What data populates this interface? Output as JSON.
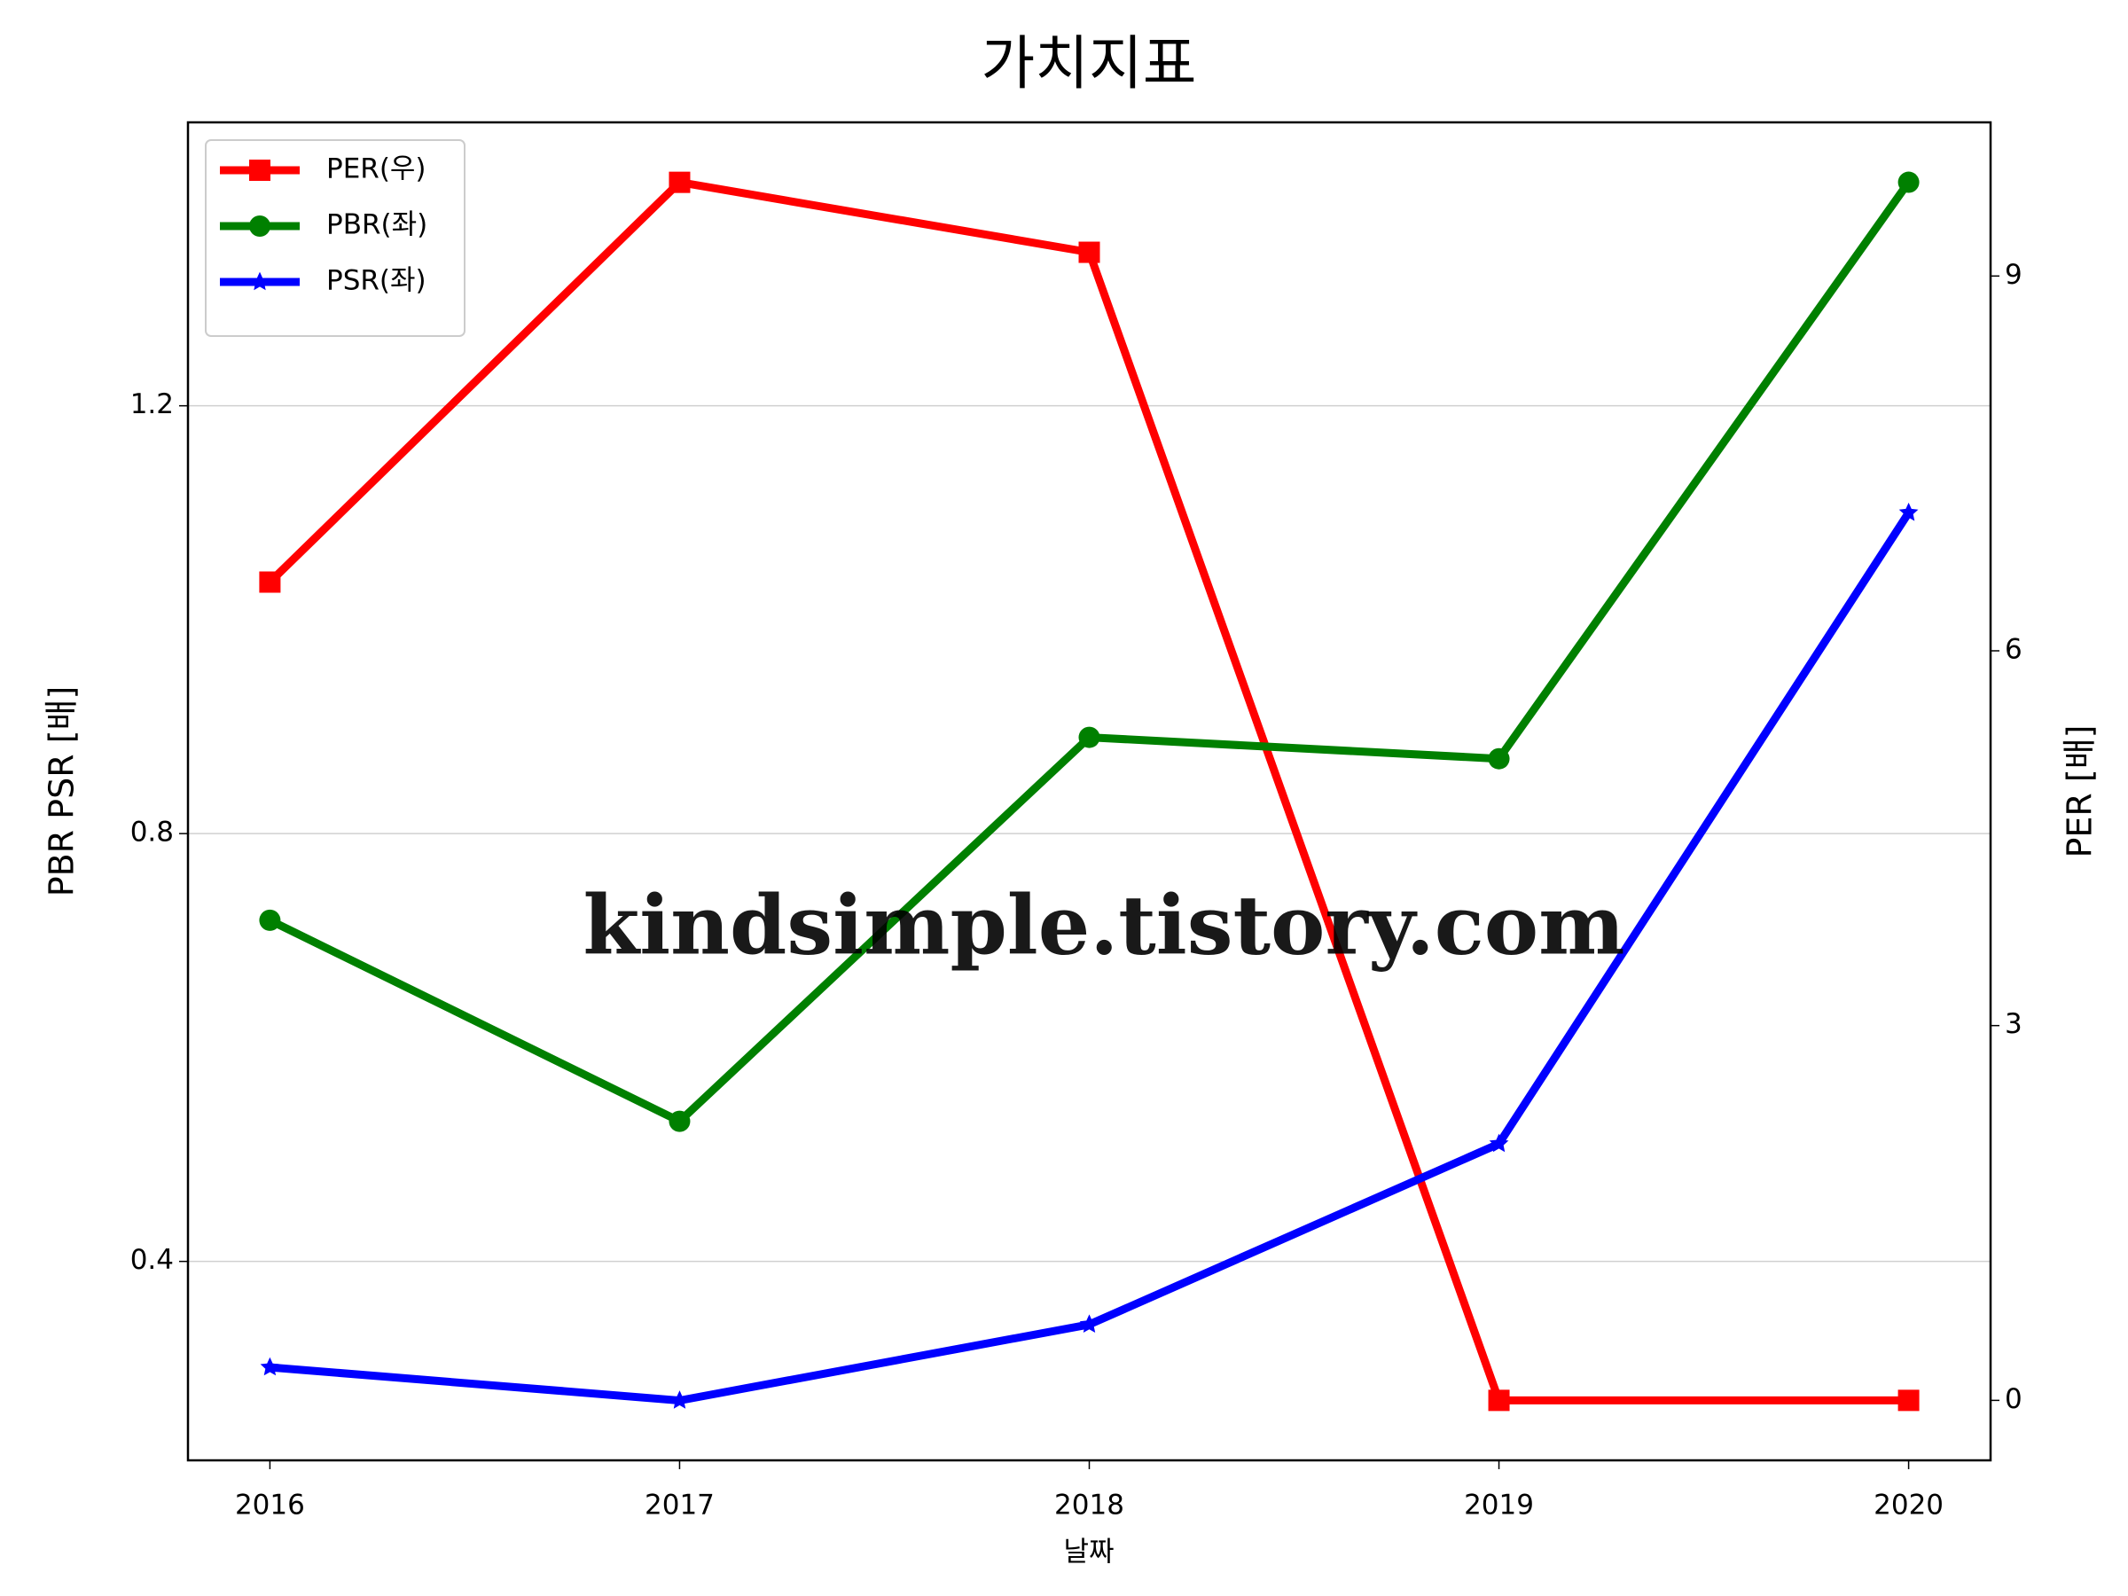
{
  "chart_data": {
    "type": "line",
    "title": "가치지표",
    "x_label": "날짜",
    "y_label": "PBR PSR [배]",
    "y2_label": "PER [배]",
    "watermark": "kindsimple.tistory.com",
    "x": [
      2016,
      2017,
      2018,
      2019,
      2020
    ],
    "xlim": [
      2015.8,
      2020.2
    ],
    "xticks": [
      2016,
      2017,
      2018,
      2019,
      2020
    ],
    "ylim": [
      0.214,
      1.465
    ],
    "yticks": [
      0.4,
      0.8,
      1.2
    ],
    "y2lim": [
      -0.48,
      10.23
    ],
    "y2ticks": [
      0,
      3,
      6,
      9
    ],
    "grid": true,
    "legend": "upper left",
    "y_label_color": "#008000",
    "y2_label_color": "#ff0000",
    "series": [
      {
        "name": "PER(우)",
        "color": "#ff0000",
        "marker": "square",
        "axis": "y2",
        "values": [
          6.55,
          9.75,
          9.19,
          0,
          0
        ]
      },
      {
        "name": "PBR(좌)",
        "color": "#008000",
        "marker": "circle",
        "values": [
          0.719,
          0.531,
          0.89,
          0.87,
          1.409
        ]
      },
      {
        "name": "PSR(좌)",
        "color": "#0000ff",
        "marker": "star",
        "values": [
          0.301,
          0.27,
          0.341,
          0.51,
          1.1
        ]
      }
    ]
  }
}
